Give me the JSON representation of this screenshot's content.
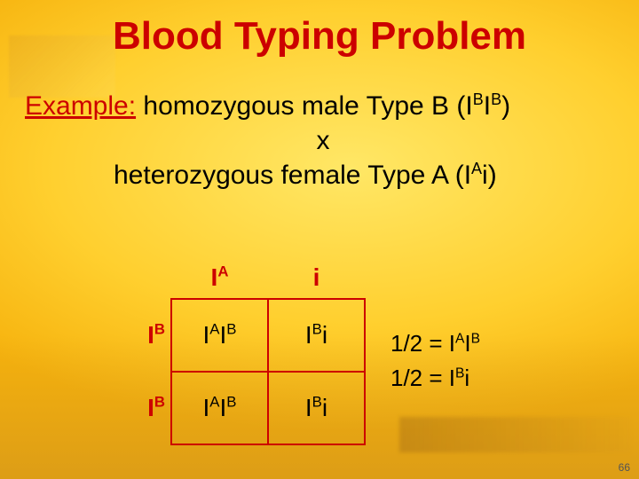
{
  "title": "Blood Typing Problem",
  "example_label": "Example:",
  "line1_rest": " homozygous male Type B (I",
  "line1_sup1": "B",
  "line1_mid": "I",
  "line1_sup2": "B",
  "line1_tail": ")",
  "line2": "x",
  "line3_a": "heterozygous female Type A (I",
  "line3_sup": "A",
  "line3_b": "i)",
  "punnett": {
    "col1_base": "I",
    "col1_sup": "A",
    "col2": "i",
    "row1_base": "I",
    "row1_sup": "B",
    "row2_base": "I",
    "row2_sup": "B",
    "c11_a_base": "I",
    "c11_a_sup": "A",
    "c11_b_base": "I",
    "c11_b_sup": "B",
    "c12_a_base": "I",
    "c12_a_sup": "B",
    "c12_b": "i",
    "c21_a_base": "I",
    "c21_a_sup": "A",
    "c21_b_base": "I",
    "c21_b_sup": "B",
    "c22_a_base": "I",
    "c22_a_sup": "B",
    "c22_b": "i",
    "border_color": "#cc0000"
  },
  "ratios": {
    "r1_frac": "1/2 = ",
    "r1_a_base": "I",
    "r1_a_sup": "A",
    "r1_b_base": "I",
    "r1_b_sup": "B",
    "r2_frac": "1/2 = ",
    "r2_a_base": "I",
    "r2_a_sup": "B",
    "r2_b": "i"
  },
  "page_number": "66",
  "colors": {
    "accent": "#cc0000",
    "text": "#000000",
    "bg_inner": "#ffe766",
    "bg_mid": "#ffcf2e",
    "bg_outer": "#f6b20d"
  },
  "fontsizes": {
    "title": 44,
    "body": 30,
    "table": 28,
    "ratios": 26
  }
}
